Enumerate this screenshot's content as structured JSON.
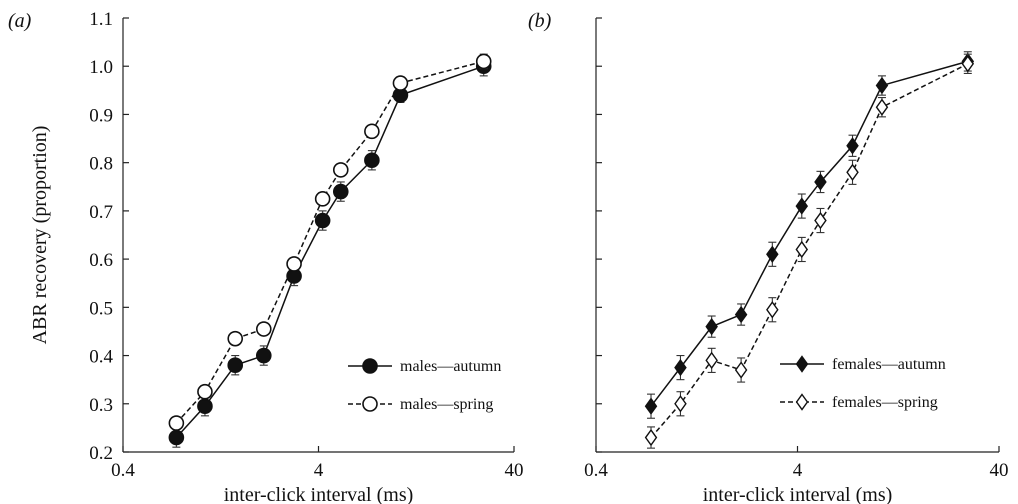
{
  "chart_data": [
    {
      "type": "line",
      "panel_label": "(a)",
      "xlabel": "inter-click interval (ms)",
      "ylabel": "ABR recovery (proportion)",
      "xscale": "log",
      "xlim": [
        0.4,
        40
      ],
      "ylim": [
        0.2,
        1.1
      ],
      "xticks": [
        0.4,
        4,
        40
      ],
      "xtick_labels": [
        "0.4",
        "4",
        "40"
      ],
      "yticks": [
        0.2,
        0.3,
        0.4,
        0.5,
        0.6,
        0.7,
        0.8,
        0.9,
        1.0,
        1.1
      ],
      "ytick_labels": [
        "0.2",
        "0.3",
        "0.4",
        "0.5",
        "0.6",
        "0.7",
        "0.8",
        "0.9",
        "1.0",
        "1.1"
      ],
      "legend_position": "lower-right",
      "series": [
        {
          "name": "males—autumn",
          "marker": "filled-circle",
          "line": "solid",
          "color": "#111111",
          "x": [
            0.75,
            1.05,
            1.5,
            2.1,
            3.0,
            4.2,
            5.2,
            7.5,
            10.5,
            28.0
          ],
          "y": [
            0.23,
            0.295,
            0.38,
            0.4,
            0.565,
            0.68,
            0.74,
            0.805,
            0.94,
            1.0
          ],
          "err": [
            0.02,
            0.02,
            0.02,
            0.02,
            0.02,
            0.02,
            0.02,
            0.02,
            0.015,
            0.02
          ]
        },
        {
          "name": "males—spring",
          "marker": "open-circle",
          "line": "dashed",
          "color": "#111111",
          "x": [
            0.75,
            1.05,
            1.5,
            2.1,
            3.0,
            4.2,
            5.2,
            7.5,
            10.5,
            28.0
          ],
          "y": [
            0.26,
            0.325,
            0.435,
            0.455,
            0.59,
            0.725,
            0.785,
            0.865,
            0.965,
            1.01
          ],
          "err": [
            0.01,
            0.012,
            0.012,
            0.01,
            0.012,
            0.012,
            0.012,
            0.01,
            0.01,
            0.015
          ]
        }
      ]
    },
    {
      "type": "line",
      "panel_label": "(b)",
      "xlabel": "inter-click interval (ms)",
      "ylabel": "",
      "xscale": "log",
      "xlim": [
        0.4,
        40
      ],
      "ylim": [
        0.2,
        1.1
      ],
      "xticks": [
        0.4,
        4,
        40
      ],
      "xtick_labels": [
        "0.4",
        "4",
        "40"
      ],
      "yticks": [
        0.2,
        0.3,
        0.4,
        0.5,
        0.6,
        0.7,
        0.8,
        0.9,
        1.0,
        1.1
      ],
      "ytick_labels": [],
      "legend_position": "lower-right",
      "series": [
        {
          "name": "females—autumn",
          "marker": "filled-diamond",
          "line": "solid",
          "color": "#111111",
          "x": [
            0.75,
            1.05,
            1.5,
            2.1,
            3.0,
            4.2,
            5.2,
            7.5,
            10.5,
            28.0
          ],
          "y": [
            0.295,
            0.375,
            0.46,
            0.485,
            0.61,
            0.71,
            0.76,
            0.835,
            0.96,
            1.01
          ],
          "err": [
            0.025,
            0.025,
            0.022,
            0.022,
            0.025,
            0.025,
            0.022,
            0.022,
            0.02,
            0.02
          ]
        },
        {
          "name": "females—spring",
          "marker": "open-diamond",
          "line": "dashed",
          "color": "#111111",
          "x": [
            0.75,
            1.05,
            1.5,
            2.1,
            3.0,
            4.2,
            5.2,
            7.5,
            10.5,
            28.0
          ],
          "y": [
            0.23,
            0.3,
            0.39,
            0.37,
            0.495,
            0.62,
            0.68,
            0.78,
            0.915,
            1.005
          ],
          "err": [
            0.022,
            0.025,
            0.025,
            0.025,
            0.025,
            0.025,
            0.025,
            0.025,
            0.02,
            0.02
          ]
        }
      ]
    }
  ]
}
